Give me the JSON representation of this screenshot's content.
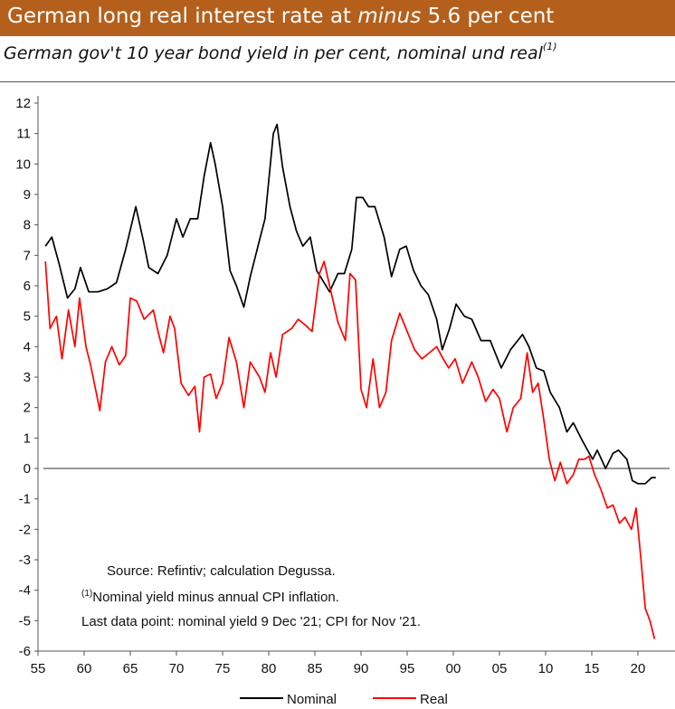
{
  "header": {
    "title_prefix": "German long real interest rate at ",
    "title_emph": "minus",
    "title_suffix": " 5.6 per cent",
    "subtitle": "German gov't 10 year bond yield in per cent, nominal und real",
    "subtitle_footnote_marker": "(1)"
  },
  "colors": {
    "title_bar": "#b4601c",
    "nominal": "#000000",
    "real": "#ff0000"
  },
  "annotations": {
    "source": "Source: Refintiv; calculation Degussa.",
    "footnote_marker": "(1)",
    "footnote": "Nominal yield minus annual CPI inflation.",
    "last_point": "Last data point: nominal yield 9 Dec '21; CPI for Nov '21."
  },
  "chart_data": {
    "type": "line",
    "title": "German long real interest rate at minus 5.6 per cent",
    "subtitle": "German gov't 10 year bond yield in per cent, nominal und real",
    "ylim": [
      -6,
      12
    ],
    "y_ticks": [
      12,
      11,
      10,
      9,
      8,
      7,
      6,
      5,
      4,
      3,
      2,
      1,
      0,
      -1,
      -2,
      -3,
      -4,
      -5,
      -6
    ],
    "xlim": [
      1955,
      2022
    ],
    "x_ticks": [
      1955,
      1960,
      1965,
      1970,
      1975,
      1980,
      1985,
      1990,
      1995,
      2000,
      2005,
      2010,
      2015,
      2020
    ],
    "x_tick_labels": [
      "55",
      "60",
      "65",
      "70",
      "75",
      "80",
      "85",
      "90",
      "95",
      "00",
      "05",
      "10",
      "15",
      "20"
    ],
    "legend_position": "bottom",
    "zero_line": true,
    "grid": false,
    "series": [
      {
        "name": "Nominal",
        "color": "#000000",
        "points": [
          [
            1955.8,
            7.3
          ],
          [
            1956.5,
            7.6
          ],
          [
            1957.3,
            6.7
          ],
          [
            1958.2,
            5.6
          ],
          [
            1959,
            5.9
          ],
          [
            1959.6,
            6.6
          ],
          [
            1960.5,
            5.8
          ],
          [
            1961.5,
            5.8
          ],
          [
            1962.5,
            5.9
          ],
          [
            1963.5,
            6.1
          ],
          [
            1964.5,
            7.2
          ],
          [
            1965.6,
            8.6
          ],
          [
            1966.4,
            7.5
          ],
          [
            1967,
            6.6
          ],
          [
            1968,
            6.4
          ],
          [
            1969,
            7.0
          ],
          [
            1970,
            8.2
          ],
          [
            1970.7,
            7.6
          ],
          [
            1971.5,
            8.2
          ],
          [
            1972.3,
            8.2
          ],
          [
            1973,
            9.6
          ],
          [
            1973.7,
            10.7
          ],
          [
            1974.2,
            10.0
          ],
          [
            1975,
            8.6
          ],
          [
            1975.8,
            6.5
          ],
          [
            1976.5,
            6.0
          ],
          [
            1977.3,
            5.3
          ],
          [
            1978,
            6.3
          ],
          [
            1979,
            7.5
          ],
          [
            1979.6,
            8.2
          ],
          [
            1980.5,
            11.0
          ],
          [
            1980.9,
            11.3
          ],
          [
            1981.5,
            9.9
          ],
          [
            1982.3,
            8.6
          ],
          [
            1983,
            7.8
          ],
          [
            1983.7,
            7.3
          ],
          [
            1984.5,
            7.6
          ],
          [
            1985.2,
            6.5
          ],
          [
            1985.8,
            6.2
          ],
          [
            1986.6,
            5.8
          ],
          [
            1987.5,
            6.4
          ],
          [
            1988.2,
            6.4
          ],
          [
            1989,
            7.2
          ],
          [
            1989.5,
            8.9
          ],
          [
            1990.2,
            8.9
          ],
          [
            1990.8,
            8.6
          ],
          [
            1991.5,
            8.6
          ],
          [
            1992.5,
            7.6
          ],
          [
            1993.3,
            6.3
          ],
          [
            1994.2,
            7.2
          ],
          [
            1994.9,
            7.3
          ],
          [
            1995.7,
            6.5
          ],
          [
            1996.5,
            6.0
          ],
          [
            1997.3,
            5.7
          ],
          [
            1998.2,
            4.9
          ],
          [
            1998.8,
            3.9
          ],
          [
            1999.6,
            4.6
          ],
          [
            2000.3,
            5.4
          ],
          [
            2001.2,
            5.0
          ],
          [
            2002,
            4.9
          ],
          [
            2003,
            4.2
          ],
          [
            2004,
            4.2
          ],
          [
            2005.2,
            3.3
          ],
          [
            2006.2,
            3.9
          ],
          [
            2007.5,
            4.4
          ],
          [
            2008.2,
            4.0
          ],
          [
            2009,
            3.3
          ],
          [
            2009.8,
            3.2
          ],
          [
            2010.5,
            2.5
          ],
          [
            2011.5,
            2.0
          ],
          [
            2012.3,
            1.2
          ],
          [
            2013,
            1.5
          ],
          [
            2014,
            0.9
          ],
          [
            2015.1,
            0.3
          ],
          [
            2015.6,
            0.6
          ],
          [
            2016.5,
            0.0
          ],
          [
            2017.3,
            0.5
          ],
          [
            2017.9,
            0.6
          ],
          [
            2018.8,
            0.3
          ],
          [
            2019.4,
            -0.4
          ],
          [
            2020,
            -0.5
          ],
          [
            2020.8,
            -0.5
          ],
          [
            2021.5,
            -0.3
          ],
          [
            2021.94,
            -0.3
          ]
        ]
      },
      {
        "name": "Real",
        "color": "#ff0000",
        "points": [
          [
            1955.8,
            6.8
          ],
          [
            1956.3,
            4.6
          ],
          [
            1957,
            5.0
          ],
          [
            1957.6,
            3.6
          ],
          [
            1958.3,
            5.2
          ],
          [
            1959,
            4.0
          ],
          [
            1959.5,
            5.6
          ],
          [
            1960.2,
            4.0
          ],
          [
            1960.7,
            3.4
          ],
          [
            1961.3,
            2.5
          ],
          [
            1961.7,
            1.9
          ],
          [
            1962.3,
            3.5
          ],
          [
            1963,
            4.0
          ],
          [
            1963.8,
            3.4
          ],
          [
            1964.5,
            3.7
          ],
          [
            1965,
            5.6
          ],
          [
            1965.7,
            5.5
          ],
          [
            1966.5,
            4.9
          ],
          [
            1967.5,
            5.2
          ],
          [
            1968,
            4.5
          ],
          [
            1968.6,
            3.8
          ],
          [
            1969.3,
            5.0
          ],
          [
            1969.8,
            4.6
          ],
          [
            1970.5,
            2.8
          ],
          [
            1971.3,
            2.4
          ],
          [
            1972,
            2.7
          ],
          [
            1972.5,
            1.2
          ],
          [
            1973,
            3.0
          ],
          [
            1973.7,
            3.1
          ],
          [
            1974.3,
            2.3
          ],
          [
            1975,
            2.8
          ],
          [
            1975.7,
            4.3
          ],
          [
            1976.5,
            3.5
          ],
          [
            1977.3,
            2.0
          ],
          [
            1978,
            3.5
          ],
          [
            1979,
            3.0
          ],
          [
            1979.6,
            2.5
          ],
          [
            1980.2,
            3.8
          ],
          [
            1980.8,
            3.0
          ],
          [
            1981.5,
            4.4
          ],
          [
            1982.5,
            4.6
          ],
          [
            1983.2,
            4.9
          ],
          [
            1984,
            4.7
          ],
          [
            1984.7,
            4.5
          ],
          [
            1985.5,
            6.4
          ],
          [
            1986,
            6.8
          ],
          [
            1986.6,
            6.0
          ],
          [
            1987.5,
            4.8
          ],
          [
            1988.3,
            4.2
          ],
          [
            1988.8,
            6.4
          ],
          [
            1989.4,
            6.2
          ],
          [
            1990,
            2.6
          ],
          [
            1990.6,
            2.0
          ],
          [
            1991.3,
            3.6
          ],
          [
            1992,
            2.0
          ],
          [
            1992.7,
            2.5
          ],
          [
            1993.3,
            4.2
          ],
          [
            1994.2,
            5.1
          ],
          [
            1995,
            4.5
          ],
          [
            1995.8,
            3.9
          ],
          [
            1996.6,
            3.6
          ],
          [
            1997.4,
            3.8
          ],
          [
            1998.2,
            4.0
          ],
          [
            1998.9,
            3.6
          ],
          [
            1999.5,
            3.3
          ],
          [
            2000.2,
            3.6
          ],
          [
            2001,
            2.8
          ],
          [
            2002,
            3.5
          ],
          [
            2002.7,
            3.0
          ],
          [
            2003.5,
            2.2
          ],
          [
            2004.3,
            2.6
          ],
          [
            2005,
            2.3
          ],
          [
            2005.8,
            1.2
          ],
          [
            2006.5,
            2.0
          ],
          [
            2007.3,
            2.3
          ],
          [
            2008,
            3.8
          ],
          [
            2008.6,
            2.5
          ],
          [
            2009.2,
            2.8
          ],
          [
            2009.8,
            1.6
          ],
          [
            2010.4,
            0.3
          ],
          [
            2011,
            -0.4
          ],
          [
            2011.6,
            0.2
          ],
          [
            2012.3,
            -0.5
          ],
          [
            2013,
            -0.2
          ],
          [
            2013.6,
            0.3
          ],
          [
            2014.2,
            0.3
          ],
          [
            2014.7,
            0.4
          ],
          [
            2015.3,
            -0.2
          ],
          [
            2016,
            -0.7
          ],
          [
            2016.7,
            -1.3
          ],
          [
            2017.3,
            -1.2
          ],
          [
            2018,
            -1.8
          ],
          [
            2018.6,
            -1.6
          ],
          [
            2019.3,
            -2.0
          ],
          [
            2019.8,
            -1.3
          ],
          [
            2020.3,
            -2.9
          ],
          [
            2020.8,
            -4.6
          ],
          [
            2021.3,
            -5.0
          ],
          [
            2021.8,
            -5.6
          ]
        ]
      }
    ]
  }
}
